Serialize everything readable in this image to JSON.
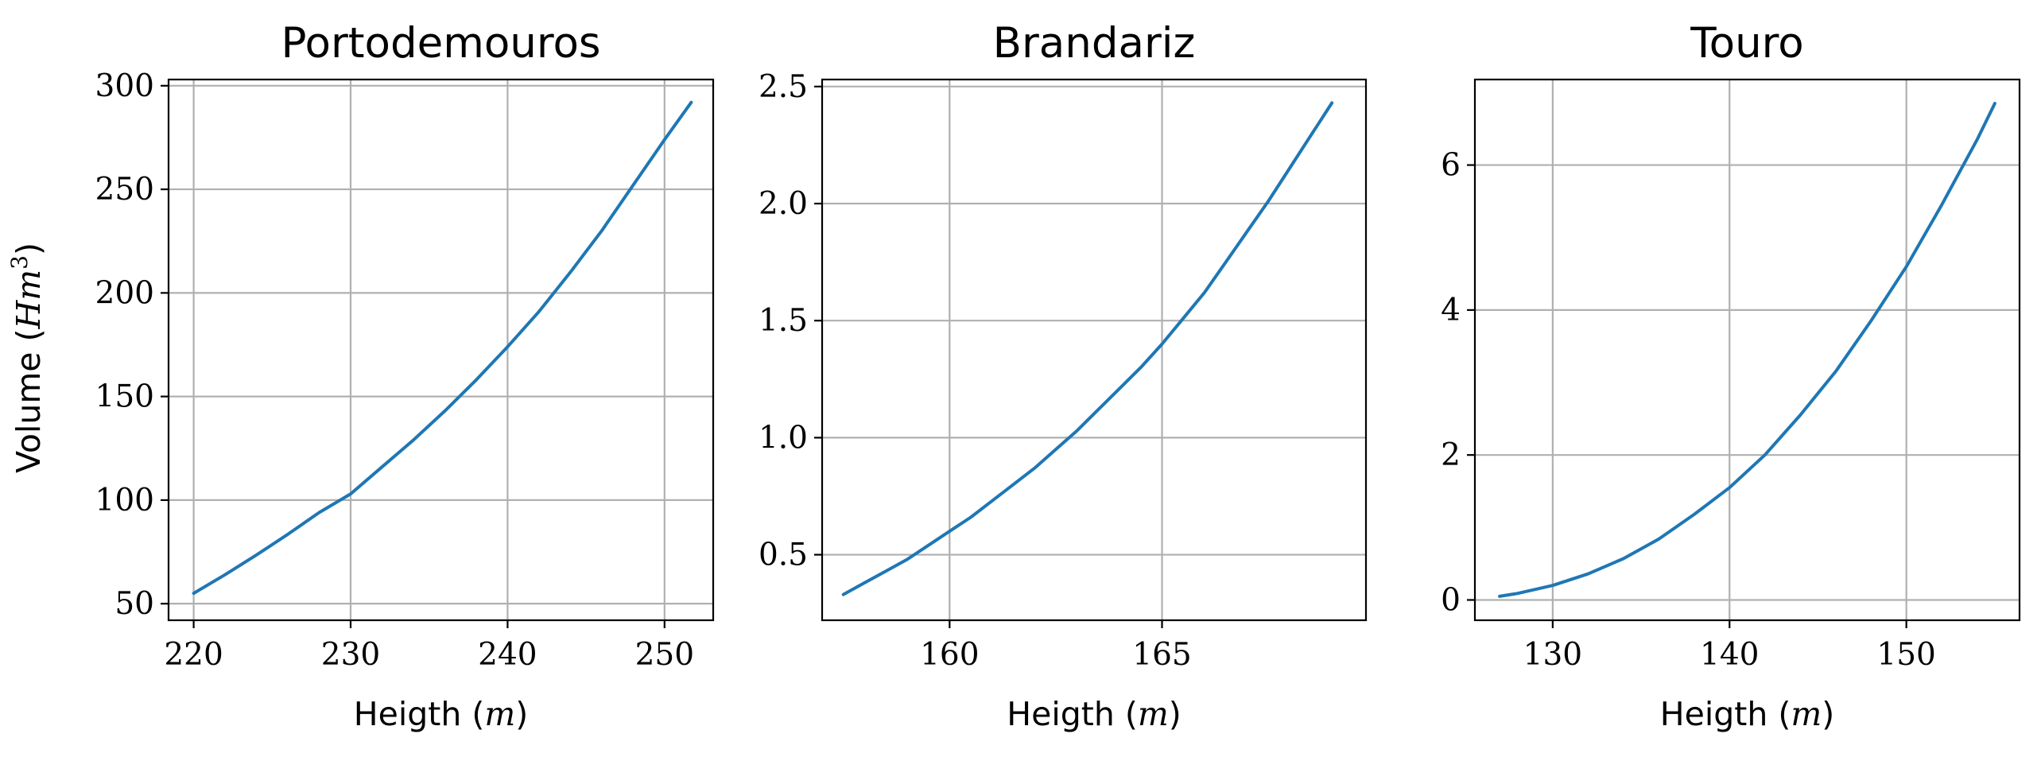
{
  "figure": {
    "ylabel_prefix": "Volume (",
    "ylabel_math": "Hm",
    "ylabel_sup": "3",
    "ylabel_suffix": ")",
    "xlabel_prefix": "Heigth (",
    "xlabel_math": "m",
    "xlabel_suffix": ")",
    "line_color": "#1f77b4",
    "grid_color": "#b0b0b0"
  },
  "chart_data": [
    {
      "type": "line",
      "title": "Portodemouros",
      "xlabel": "Heigth (m)",
      "ylabel": "Volume (Hm^3)",
      "grid": true,
      "xlim": [
        218.4,
        253.1
      ],
      "ylim": [
        42.0,
        303.0
      ],
      "xticks": [
        220,
        230,
        240,
        250
      ],
      "xtick_labels": [
        "220",
        "230",
        "240",
        "250"
      ],
      "yticks": [
        50,
        100,
        150,
        200,
        250,
        300
      ],
      "ytick_labels": [
        "50",
        "100",
        "150",
        "200",
        "250",
        "300"
      ],
      "series": [
        {
          "name": "Portodemouros",
          "x": [
            220,
            222,
            224,
            226,
            228,
            230,
            232,
            234,
            236,
            238,
            240,
            242,
            244,
            246,
            248,
            250,
            251.7
          ],
          "y": [
            55,
            64,
            73.5,
            83.5,
            94,
            103,
            116,
            129,
            143,
            158,
            174,
            191,
            210,
            230,
            252,
            274,
            292
          ]
        }
      ]
    },
    {
      "type": "line",
      "title": "Brandariz",
      "xlabel": "Heigth (m)",
      "ylabel": "",
      "grid": true,
      "xlim": [
        157.0,
        169.8
      ],
      "ylim": [
        0.22,
        2.53
      ],
      "xticks": [
        160,
        165
      ],
      "xtick_labels": [
        "160",
        "165"
      ],
      "yticks": [
        0.5,
        1.0,
        1.5,
        2.0,
        2.5
      ],
      "ytick_labels": [
        "0.5",
        "1.0",
        "1.5",
        "2.0",
        "2.5"
      ],
      "series": [
        {
          "name": "Brandariz",
          "x": [
            157.5,
            158,
            158.5,
            159,
            159.5,
            160,
            160.5,
            161,
            161.5,
            162,
            162.5,
            163,
            163.5,
            164,
            164.5,
            165,
            165.5,
            166,
            166.5,
            167,
            167.5,
            168,
            168.5,
            169
          ],
          "y": [
            0.33,
            0.38,
            0.43,
            0.48,
            0.54,
            0.6,
            0.66,
            0.73,
            0.8,
            0.87,
            0.95,
            1.03,
            1.12,
            1.21,
            1.3,
            1.4,
            1.51,
            1.62,
            1.75,
            1.88,
            2.01,
            2.15,
            2.29,
            2.43
          ]
        }
      ]
    },
    {
      "type": "line",
      "title": "Touro",
      "xlabel": "Heigth (m)",
      "ylabel": "",
      "grid": true,
      "xlim": [
        125.6,
        156.4
      ],
      "ylim": [
        -0.28,
        7.18
      ],
      "xticks": [
        130,
        140,
        150
      ],
      "xtick_labels": [
        "130",
        "140",
        "150"
      ],
      "yticks": [
        0,
        2,
        4,
        6
      ],
      "ytick_labels": [
        "0",
        "2",
        "4",
        "6"
      ],
      "series": [
        {
          "name": "Touro",
          "x": [
            127,
            128,
            130,
            132,
            134,
            136,
            138,
            140,
            142,
            144,
            146,
            148,
            150,
            152,
            154,
            155
          ],
          "y": [
            0.05,
            0.09,
            0.2,
            0.36,
            0.57,
            0.84,
            1.18,
            1.55,
            2.0,
            2.55,
            3.15,
            3.85,
            4.6,
            5.45,
            6.35,
            6.85
          ]
        }
      ]
    }
  ]
}
